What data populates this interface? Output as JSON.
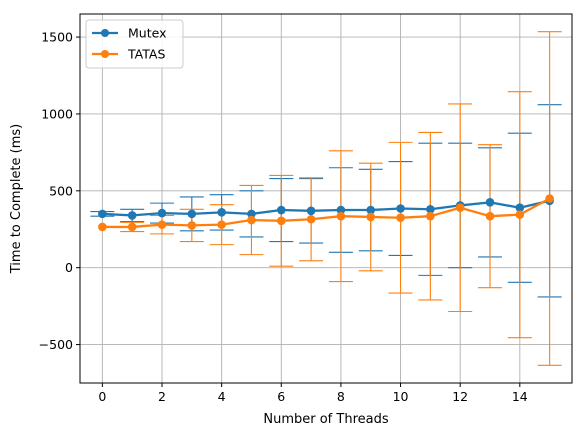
{
  "chart_data": {
    "type": "line",
    "xlabel": "Number of Threads",
    "ylabel": "Time to Complete (ms)",
    "xlim": [
      -0.75,
      15.75
    ],
    "ylim": [
      -750,
      1650
    ],
    "x_ticks": [
      0,
      2,
      4,
      6,
      8,
      10,
      12,
      14
    ],
    "y_ticks": [
      -500,
      0,
      500,
      1000,
      1500
    ],
    "y_tick_labels": [
      "−500",
      "0",
      "500",
      "1000",
      "1500"
    ],
    "grid": true,
    "legend_position": "top-left",
    "error_bars": true,
    "x": [
      0,
      1,
      2,
      3,
      4,
      5,
      6,
      7,
      8,
      9,
      10,
      11,
      12,
      13,
      14,
      15
    ],
    "series": [
      {
        "name": "Mutex",
        "color": "#1f77b4",
        "values": [
          350,
          340,
          355,
          350,
          360,
          350,
          375,
          370,
          375,
          375,
          385,
          380,
          405,
          425,
          390,
          435
        ],
        "errors": [
          15,
          40,
          65,
          110,
          115,
          150,
          205,
          210,
          275,
          265,
          305,
          430,
          405,
          355,
          485,
          625
        ]
      },
      {
        "name": "TATAS",
        "color": "#ff7f0e",
        "values": [
          265,
          265,
          280,
          275,
          280,
          310,
          305,
          315,
          335,
          330,
          325,
          335,
          390,
          335,
          345,
          450
        ],
        "errors": [
          0,
          30,
          60,
          105,
          130,
          225,
          295,
          270,
          425,
          350,
          490,
          545,
          675,
          465,
          800,
          1085
        ]
      }
    ]
  }
}
